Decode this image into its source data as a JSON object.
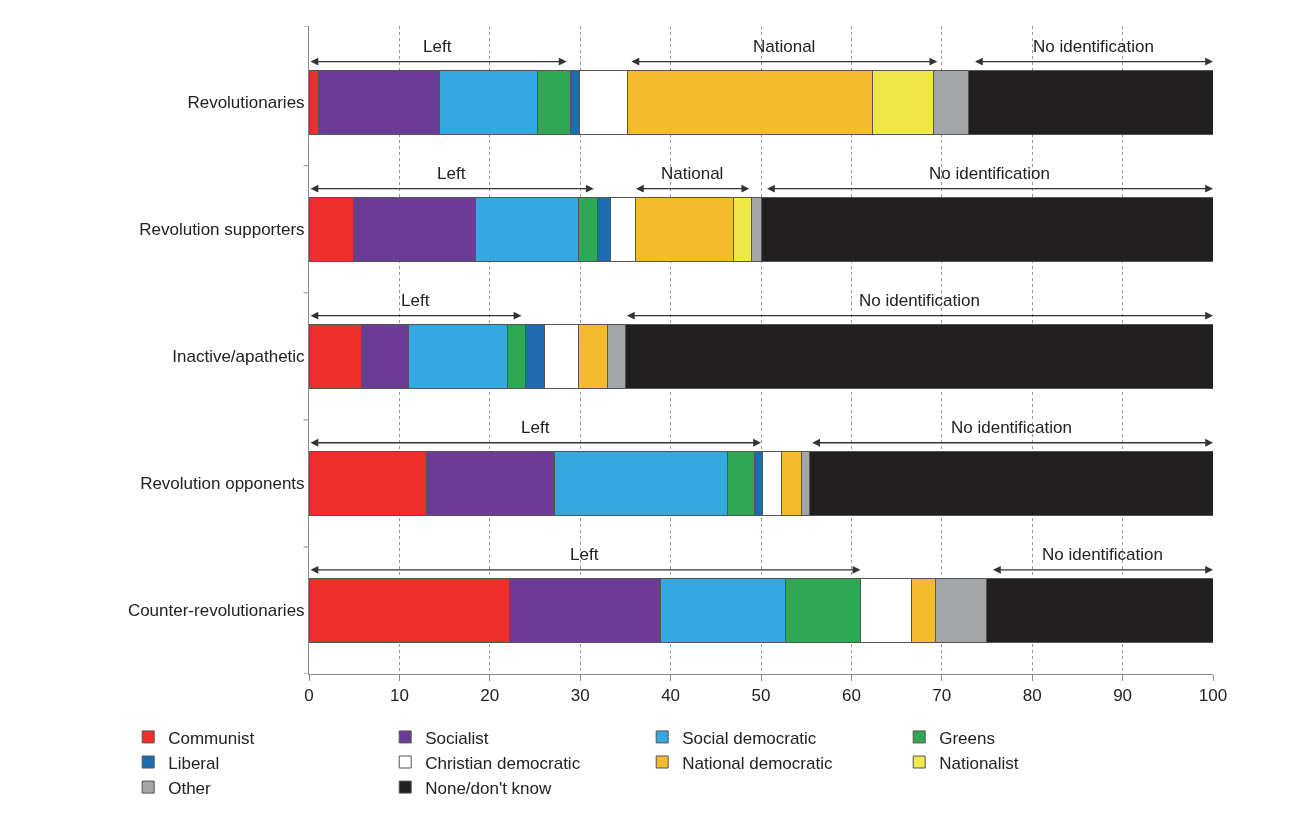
{
  "chart_data": {
    "type": "bar",
    "orientation": "horizontal",
    "stacked": true,
    "categories": [
      "Revolutionaries",
      "Revolution supporters",
      "Inactive/apathetic",
      "Revolution opponents",
      "Counter-revolutionaries"
    ],
    "series": [
      {
        "name": "Communist",
        "color": "#ee2e2b",
        "values": [
          1.1,
          4.9,
          5.8,
          13.0,
          22.2
        ]
      },
      {
        "name": "Socialist",
        "color": "#6c3b96",
        "values": [
          13.3,
          13.5,
          5.2,
          14.2,
          16.7
        ]
      },
      {
        "name": "Social democratic",
        "color": "#35a8df",
        "values": [
          10.9,
          11.4,
          11.0,
          19.1,
          13.8
        ]
      },
      {
        "name": "Greens",
        "color": "#2ea855",
        "values": [
          3.6,
          2.1,
          2.0,
          3.0,
          8.3
        ]
      },
      {
        "name": "Liberal",
        "color": "#1f6bb0",
        "values": [
          1.0,
          1.4,
          2.0,
          0.9,
          0
        ]
      },
      {
        "name": "Christian democratic",
        "color": "#ffffff",
        "values": [
          5.3,
          2.8,
          3.8,
          2.1,
          5.6
        ]
      },
      {
        "name": "National democratic",
        "color": "#f5bb2e",
        "values": [
          27.1,
          10.9,
          3.2,
          2.2,
          2.7
        ]
      },
      {
        "name": "Nationalist",
        "color": "#f0e84a",
        "values": [
          6.8,
          1.9,
          0,
          0,
          0
        ]
      },
      {
        "name": "Other",
        "color": "#a3a6a8",
        "values": [
          3.9,
          1.2,
          2.0,
          0.9,
          5.6
        ]
      },
      {
        "name": "None/don't know",
        "color": "#221f20",
        "values": [
          27.0,
          49.9,
          65.0,
          44.6,
          25.1
        ]
      }
    ],
    "xlim": [
      0,
      100
    ],
    "xticks": [
      0,
      10,
      20,
      30,
      40,
      50,
      60,
      70,
      80,
      90,
      100
    ],
    "grid": "x",
    "legend": "bottom",
    "annotations": [
      "Left",
      "National",
      "No identification",
      "Left",
      "National",
      "No identification",
      "Left",
      "No identification",
      "Left",
      "No identification",
      "Left",
      "No identification"
    ]
  }
}
